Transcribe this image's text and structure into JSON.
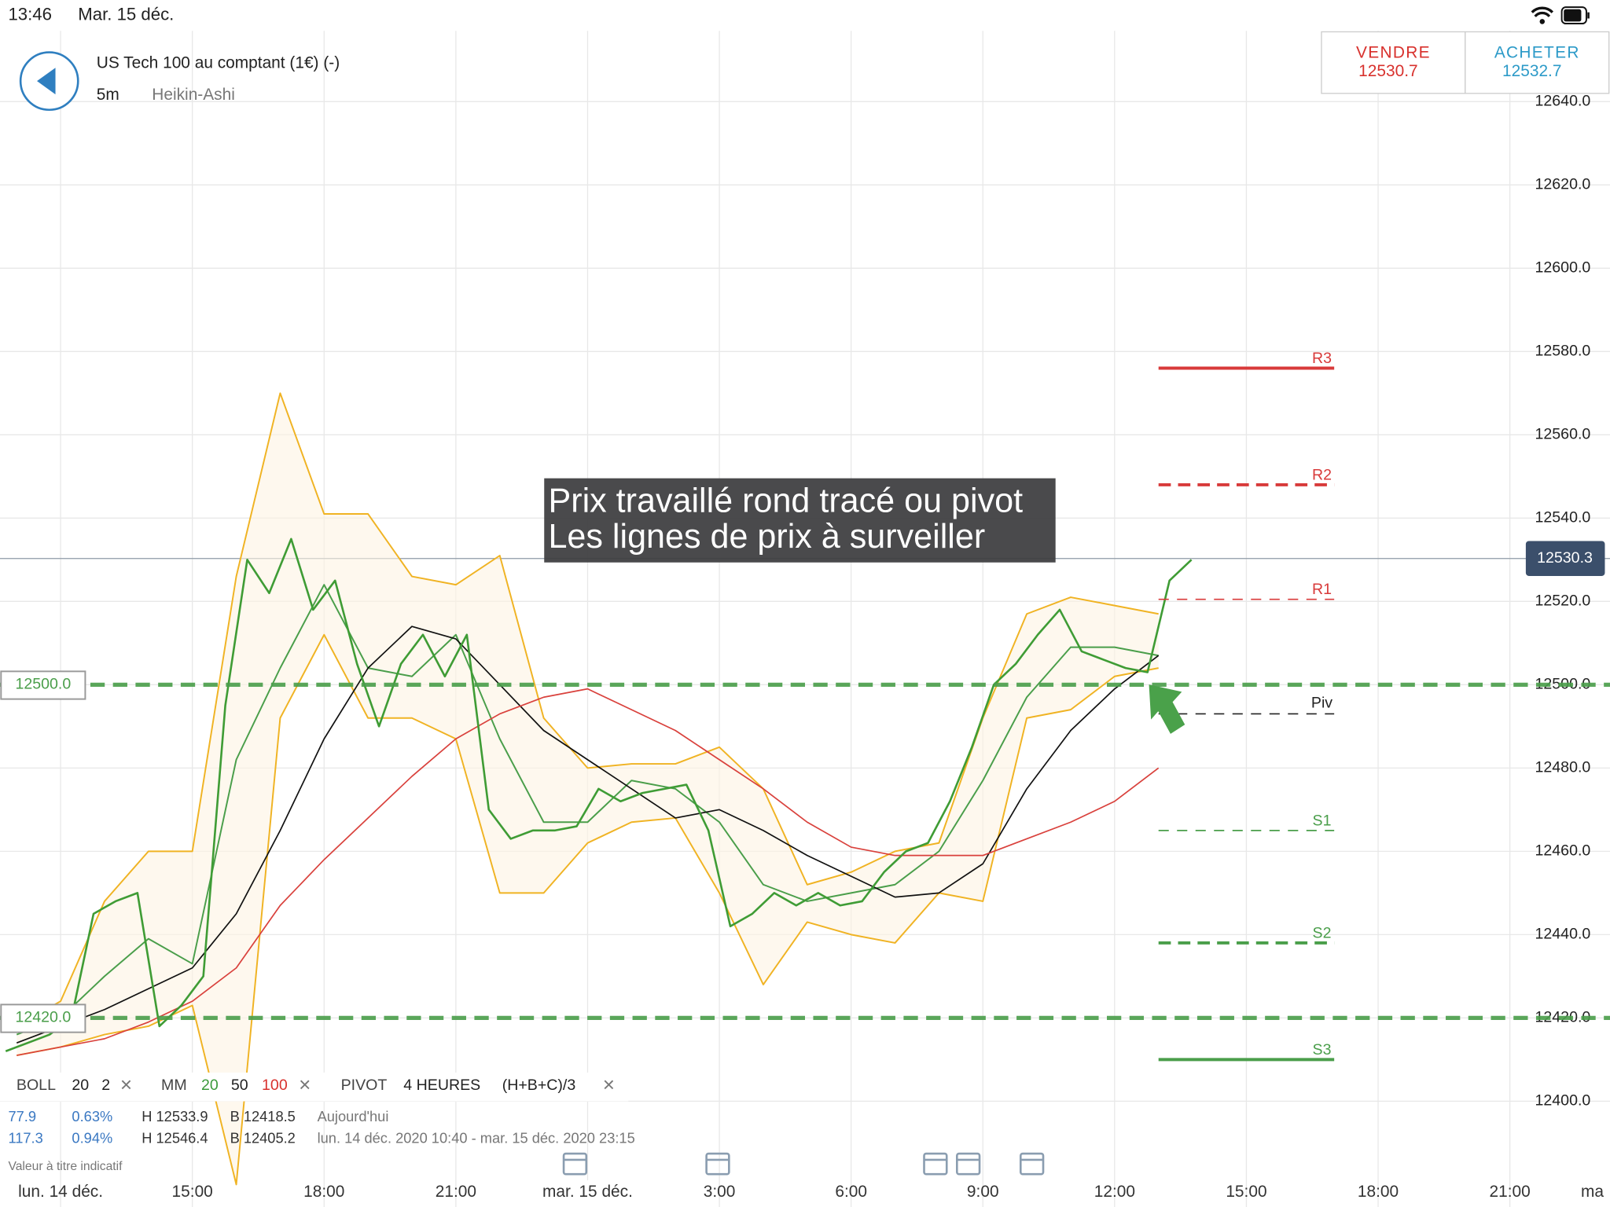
{
  "status_bar": {
    "time": "13:46",
    "date": "Mar. 15 déc."
  },
  "header": {
    "title": "US Tech 100 au comptant (1€) (-)",
    "timeframe": "5m",
    "chart_style": "Heikin-Ashi"
  },
  "trade": {
    "sell_label": "VENDRE",
    "sell_price": "12530.7",
    "buy_label": "ACHETER",
    "buy_price": "12532.7"
  },
  "chart_data": {
    "type": "line",
    "xlim": [
      10.62,
      47.28
    ],
    "ylim": [
      12374.6,
      12657
    ],
    "grid": true,
    "yticks": [
      {
        "value": 12400,
        "label": "12400.0"
      },
      {
        "value": 12420,
        "label": "12420.0"
      },
      {
        "value": 12440,
        "label": "12440.0"
      },
      {
        "value": 12460,
        "label": "12460.0"
      },
      {
        "value": 12480,
        "label": "12480.0"
      },
      {
        "value": 12500,
        "label": "12500.0"
      },
      {
        "value": 12520,
        "label": "12520.0"
      },
      {
        "value": 12540,
        "label": "12540.0"
      },
      {
        "value": 12560,
        "label": "12560.0"
      },
      {
        "value": 12580,
        "label": "12580.0"
      },
      {
        "value": 12600,
        "label": "12600.0"
      },
      {
        "value": 12620,
        "label": "12620.0"
      },
      {
        "value": 12640,
        "label": "12640.0"
      }
    ],
    "xticks": [
      {
        "value": 12,
        "label": "lun. 14 déc."
      },
      {
        "value": 15,
        "label": "15:00"
      },
      {
        "value": 18,
        "label": "18:00"
      },
      {
        "value": 21,
        "label": "21:00"
      },
      {
        "value": 24,
        "label": "mar. 15 déc."
      },
      {
        "value": 27,
        "label": "3:00"
      },
      {
        "value": 30,
        "label": "6:00"
      },
      {
        "value": 33,
        "label": "9:00"
      },
      {
        "value": 36,
        "label": "12:00"
      },
      {
        "value": 39,
        "label": "15:00"
      },
      {
        "value": 42,
        "label": "18:00"
      },
      {
        "value": 45,
        "label": "21:00"
      },
      {
        "value": 48,
        "label": "ma"
      }
    ],
    "series": [
      {
        "color": "#3f9c35",
        "width": 2,
        "x": [
          10.75,
          11.25,
          11.75,
          12.25,
          12.75,
          13.25,
          13.75,
          14.25,
          14.75,
          15.25,
          15.75,
          16.25,
          16.75,
          17.25,
          17.75,
          18.25,
          18.75,
          19.25,
          19.75,
          20.25,
          20.75,
          21.25,
          21.75,
          22.25,
          22.75,
          23.25,
          23.75,
          24.25,
          24.75,
          25.25,
          25.75,
          26.25,
          26.75,
          27.25,
          27.75,
          28.25,
          28.75,
          29.25,
          29.75,
          30.25,
          30.75,
          31.25,
          31.75,
          32.25,
          32.75,
          33.25,
          33.75,
          34.25,
          34.75,
          35.25,
          35.75,
          36.25,
          36.75,
          37.25,
          37.75
        ],
        "values": [
          12412,
          12414,
          12416,
          12420,
          12445,
          12448,
          12450,
          12418,
          12423,
          12430,
          12495,
          12530,
          12522,
          12535,
          12518,
          12525,
          12505,
          12490,
          12505,
          12512,
          12502,
          12512,
          12470,
          12463,
          12465,
          12465,
          12466,
          12475,
          12472,
          12474,
          12475,
          12476,
          12465,
          12442,
          12445,
          12450,
          12447,
          12450,
          12447,
          12448,
          12455,
          12460,
          12462,
          12472,
          12485,
          12500,
          12505,
          12512,
          12518,
          12508,
          12506,
          12504,
          12503,
          12525,
          12530
        ]
      },
      {
        "color": "#f0b323",
        "width": 1.5,
        "band": "upper",
        "x": [
          11,
          12,
          13,
          14,
          15,
          16,
          17,
          18,
          19,
          20,
          21,
          22,
          23,
          24,
          25,
          26,
          27,
          28,
          29,
          30,
          31,
          32,
          33,
          34,
          35,
          36,
          37
        ],
        "values": [
          12418,
          12424,
          12448,
          12460,
          12460,
          12526,
          12570,
          12541,
          12541,
          12526,
          12524,
          12531,
          12492,
          12480,
          12481,
          12481,
          12485,
          12475,
          12452,
          12455,
          12460,
          12462,
          12492,
          12517,
          12521,
          12519,
          12517
        ]
      },
      {
        "color": "#f0b323",
        "width": 1.5,
        "band": "lower",
        "x": [
          11,
          12,
          13,
          14,
          15,
          16,
          17,
          18,
          19,
          20,
          21,
          22,
          23,
          24,
          25,
          26,
          27,
          28,
          29,
          30,
          31,
          32,
          33,
          34,
          35,
          36,
          37
        ],
        "values": [
          12411,
          12413,
          12416,
          12418,
          12423,
          12380,
          12492,
          12512,
          12492,
          12492,
          12487,
          12450,
          12450,
          12462,
          12467,
          12468,
          12450,
          12428,
          12443,
          12440,
          12438,
          12450,
          12448,
          12492,
          12494,
          12502,
          12504
        ]
      },
      {
        "color": "#4a9e4a",
        "width": 1.5,
        "x": [
          11,
          12,
          13,
          14,
          15,
          16,
          17,
          18,
          19,
          20,
          21,
          22,
          23,
          24,
          25,
          26,
          27,
          28,
          29,
          30,
          31,
          32,
          33,
          34,
          35,
          36,
          37
        ],
        "values": [
          12416,
          12420,
          12430,
          12439,
          12433,
          12482,
          12504,
          12524,
          12504,
          12502,
          12512,
          12487,
          12467,
          12467,
          12477,
          12475,
          12467,
          12452,
          12448,
          12450,
          12452,
          12460,
          12477,
          12497,
          12509,
          12509,
          12507
        ]
      },
      {
        "color": "#111111",
        "width": 1.3,
        "x": [
          11,
          12,
          13,
          14,
          15,
          16,
          17,
          18,
          19,
          20,
          21,
          22,
          23,
          24,
          25,
          26,
          27,
          28,
          29,
          30,
          31,
          32,
          33,
          34,
          35,
          36,
          37
        ],
        "values": [
          12414,
          12418,
          12422,
          12427,
          12432,
          12445,
          12465,
          12487,
          12504,
          12514,
          12511,
          12500,
          12489,
          12482,
          12475,
          12468,
          12470,
          12465,
          12459,
          12454,
          12449,
          12450,
          12457,
          12475,
          12489,
          12499,
          12507
        ]
      },
      {
        "color": "#d9413c",
        "width": 1.3,
        "x": [
          11,
          12,
          13,
          14,
          15,
          16,
          17,
          18,
          19,
          20,
          21,
          22,
          23,
          24,
          25,
          26,
          27,
          28,
          29,
          30,
          31,
          32,
          33,
          34,
          35,
          36,
          37
        ],
        "values": [
          12411,
          12413,
          12415,
          12419,
          12424,
          12432,
          12447,
          12458,
          12468,
          12478,
          12487,
          12493,
          12497,
          12499,
          12494,
          12489,
          12482,
          12475,
          12467,
          12461,
          12459,
          12459,
          12459,
          12463,
          12467,
          12472,
          12480
        ]
      }
    ],
    "level_x": [
      37,
      41
    ],
    "levels": [
      {
        "label": "R3",
        "value": 12576,
        "color": "#d83a3a",
        "style": "solid"
      },
      {
        "label": "R2",
        "value": 12548,
        "color": "#d83a3a",
        "style": "dashed"
      },
      {
        "label": "R1",
        "value": 12520.5,
        "color": "#d83a3a",
        "style": "thin"
      },
      {
        "label": "Piv",
        "value": 12493,
        "color": "#222222",
        "style": "thin"
      },
      {
        "label": "S1",
        "value": 12465,
        "color": "#4a9e4a",
        "style": "thin"
      },
      {
        "label": "S2",
        "value": 12438,
        "color": "#4a9e4a",
        "style": "dashed"
      },
      {
        "label": "S3",
        "value": 12410,
        "color": "#4a9e4a",
        "style": "solid"
      }
    ],
    "hlines": [
      {
        "value": 12500,
        "label": "12500.0",
        "color": "#4a9e4a"
      },
      {
        "value": 12420,
        "label": "12420.0",
        "color": "#4a9e4a"
      }
    ],
    "current_price": {
      "value": 12530.3,
      "label": "12530.3"
    },
    "annotation": [
      "Prix travaillé rond tracé ou pivot",
      "Les lignes de prix à surveiller"
    ]
  },
  "legend": {
    "boll": {
      "name": "BOLL",
      "period": "20",
      "deviation": "2"
    },
    "mm": {
      "name": "MM",
      "p1": "20",
      "p2": "50",
      "p3": "100"
    },
    "pivot": {
      "name": "PIVOT",
      "period": "4 HEURES",
      "formula": "(H+B+C)/3"
    },
    "close": "×"
  },
  "stats": [
    [
      "77.9",
      "0.63%",
      "H 12533.9",
      "B 12418.5",
      "Aujourd'hui"
    ],
    [
      "117.3",
      "0.94%",
      "H 12546.4",
      "B 12405.2",
      "lun. 14 déc. 2020 10:40 - mar. 15 déc. 2020 23:15"
    ]
  ],
  "disclaimer": "Valeur à titre indicatif"
}
